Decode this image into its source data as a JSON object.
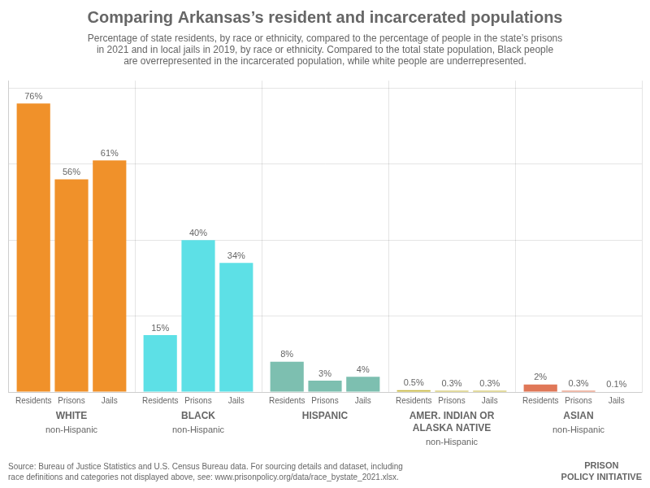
{
  "chart_data": {
    "type": "bar",
    "title": "Comparing Arkansas’s resident and incarcerated populations",
    "subtitle": "Percentage of state residents, by race or ethnicity, compared to the percentage of people in the state’s prisons\nin 2021 and in local jails in 2019, by race or ethnicity. Compared to the total state population, Black people\nare overrepresented in the incarcerated population, while white people are underrepresented.",
    "source": "Source: Bureau of Justice Statistics and U.S. Census Bureau data. For sourcing details and dataset, including\nrace definitions and categories not displayed above, see: www.prisonpolicy.org/data/race_bystate_2021.xlsx.",
    "credit": "PRISON\nPOLICY INITIATIVE",
    "categories": [
      "WHITE",
      "BLACK",
      "HISPANIC",
      "AMER. INDIAN OR\nALASKA NATIVE",
      "ASIAN"
    ],
    "category_sublabels": [
      "non-Hispanic",
      "non-Hispanic",
      null,
      "non-Hispanic",
      "non-Hispanic"
    ],
    "series": [
      {
        "name": "Residents",
        "values": [
          76,
          15,
          8,
          0.5,
          2
        ],
        "value_labels": [
          "76%",
          "15%",
          "8%",
          "0.5%",
          "2%"
        ],
        "colors": [
          "#f0912a",
          "#5de0e6",
          "#7dbfb0",
          "#c8b840",
          "#e07858"
        ]
      },
      {
        "name": "Prisons",
        "values": [
          56,
          40,
          3,
          0.3,
          0.3
        ],
        "value_labels": [
          "56%",
          "40%",
          "3%",
          "0.3%",
          "0.3%"
        ],
        "colors": [
          "#f0912a",
          "#5de0e6",
          "#7dbfb0",
          "#c8b840",
          "#e07858"
        ]
      },
      {
        "name": "Jails",
        "values": [
          61,
          34,
          4,
          0.3,
          0.1
        ],
        "value_labels": [
          "61%",
          "34%",
          "4%",
          "0.3%",
          "0.1%"
        ],
        "colors": [
          "#f0912a",
          "#5de0e6",
          "#7dbfb0",
          "#c8b840",
          "#e07858"
        ]
      }
    ],
    "ylim": [
      0,
      82
    ],
    "yticks": [
      0,
      20,
      40,
      60,
      80
    ],
    "grid": true,
    "tick_labels": false,
    "data_labels": true
  }
}
